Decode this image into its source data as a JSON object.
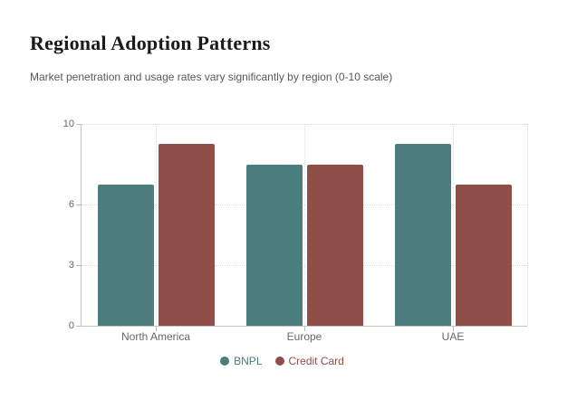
{
  "chart_data": {
    "type": "bar",
    "title": "Regional Adoption Patterns",
    "subtitle": "Market penetration and usage rates vary significantly by region (0-10 scale)",
    "categories": [
      "North America",
      "Europe",
      "UAE"
    ],
    "series": [
      {
        "name": "BNPL",
        "color": "#4a7d7c",
        "values": [
          7.0,
          8.0,
          9.0
        ]
      },
      {
        "name": "Credit Card",
        "color": "#8f4e48",
        "values": [
          9.0,
          8.0,
          7.0
        ]
      }
    ],
    "ylim": [
      0,
      10
    ],
    "yticks": [
      0,
      3,
      6,
      10
    ],
    "grid": true,
    "legend_position": "bottom",
    "colors": {
      "axis": "#c4c4c4",
      "gridline": "#dcdcdc",
      "tick_labels": "#666666",
      "title": "#1a1a1a",
      "subtitle": "#585858"
    }
  }
}
